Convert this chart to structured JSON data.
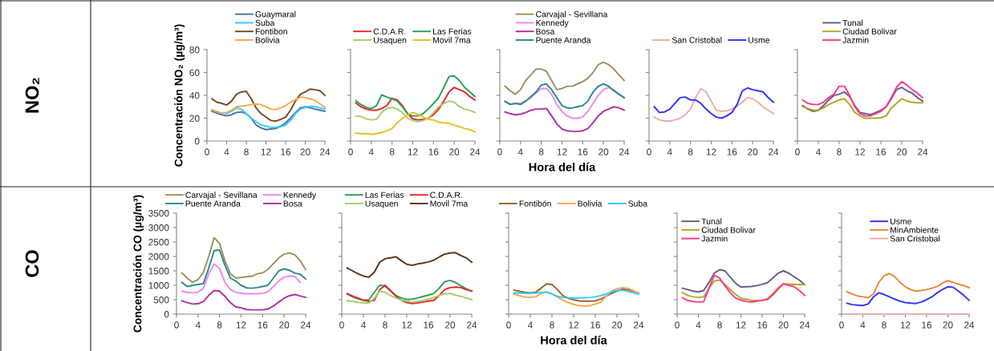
{
  "chart_data": [
    {
      "type": "line",
      "x": [
        1,
        2,
        3,
        4,
        5,
        6,
        7,
        8,
        9,
        10,
        11,
        12,
        13,
        14,
        15,
        16,
        17,
        18,
        19,
        20,
        21,
        22,
        23,
        24
      ],
      "ylabel": "Concentración NO₂ (µg/m³)",
      "annotations": [
        "NO₂"
      ],
      "xlim": [
        0,
        24
      ],
      "xticks": [
        0,
        4,
        8,
        12,
        16,
        20,
        24
      ],
      "ylim": [
        0,
        80
      ],
      "yticks": [
        0,
        20,
        40,
        60,
        80
      ],
      "legend": "top",
      "series": [
        {
          "name": "Guaymaral",
          "color": "#4f6fa8",
          "values": [
            26,
            24.5,
            23,
            22,
            23,
            25,
            25.5,
            24,
            20,
            14,
            11.5,
            10,
            10.5,
            11,
            13,
            16,
            20,
            25,
            29,
            30,
            29,
            28,
            27,
            26
          ]
        },
        {
          "name": "Suba",
          "color": "#33ccff",
          "values": [
            27,
            25.5,
            24.5,
            24,
            26,
            29,
            28,
            24,
            20,
            17,
            14,
            13,
            12,
            12,
            12.5,
            14,
            18,
            24,
            28,
            29.5,
            30.5,
            30,
            29,
            28
          ]
        },
        {
          "name": "Fontibon",
          "color": "#7a4a1e",
          "values": [
            37,
            34,
            33,
            31.5,
            35,
            41,
            43,
            43.5,
            37,
            29,
            24,
            21,
            18,
            17.5,
            19,
            21,
            27,
            35,
            41,
            43,
            45.5,
            45,
            44,
            40
          ]
        },
        {
          "name": "Bolivia",
          "color": "#ffa54f",
          "values": [
            27.5,
            26,
            24.5,
            25,
            27,
            30,
            30.5,
            31,
            32,
            32.5,
            32,
            30,
            28,
            27.5,
            29,
            31,
            34,
            36,
            38.5,
            38,
            37,
            35.5,
            32.5,
            29.5
          ]
        }
      ]
    },
    {
      "type": "line",
      "x": [
        1,
        2,
        3,
        4,
        5,
        6,
        7,
        8,
        9,
        10,
        11,
        12,
        13,
        14,
        15,
        16,
        17,
        18,
        19,
        20,
        21,
        22,
        23,
        24
      ],
      "xlim": [
        0,
        24
      ],
      "xticks": [
        0,
        4,
        8,
        12,
        16,
        20,
        24
      ],
      "ylim": [
        0,
        80
      ],
      "yticks": [
        0,
        20,
        40,
        60,
        80
      ],
      "tick_labels": "x",
      "legend": "top",
      "series": [
        {
          "name": "C.D.A.R.",
          "color": "#e8262a",
          "values": [
            33.5,
            30,
            28,
            27,
            27,
            28.5,
            31,
            37.5,
            36,
            31,
            24,
            19.5,
            18.5,
            19,
            20,
            23,
            28,
            35,
            43,
            47,
            45,
            43,
            39,
            36
          ]
        },
        {
          "name": "Las Ferias",
          "color": "#2e9e5a",
          "values": [
            35.5,
            32,
            29.5,
            28.5,
            31,
            40.5,
            38.5,
            37,
            35,
            30,
            24,
            22,
            22,
            24,
            28,
            33,
            38,
            47,
            56.5,
            57,
            53,
            47,
            43,
            39
          ]
        },
        {
          "name": "Usaquen",
          "color": "#a6cf6b",
          "values": [
            22,
            21.5,
            19.5,
            18.5,
            19,
            25,
            28.5,
            29.5,
            28,
            25,
            20,
            18,
            17,
            18,
            20,
            25,
            30,
            33,
            35,
            34,
            30,
            28,
            27,
            25
          ]
        },
        {
          "name": "Movil 7ma",
          "color": "#e6c020",
          "values": [
            7,
            6.5,
            6.5,
            6,
            6.5,
            7.5,
            9,
            11,
            16,
            20,
            23,
            25,
            23.5,
            21,
            19,
            18.5,
            16.5,
            16,
            15.5,
            14,
            12.5,
            11,
            10,
            8
          ]
        }
      ]
    },
    {
      "type": "line",
      "x": [
        1,
        2,
        3,
        4,
        5,
        6,
        7,
        8,
        9,
        10,
        11,
        12,
        13,
        14,
        15,
        16,
        17,
        18,
        19,
        20,
        21,
        22,
        23,
        24
      ],
      "xlabel": "Hora del día",
      "xlim": [
        0,
        24
      ],
      "xticks": [
        0,
        4,
        8,
        12,
        16,
        20,
        24
      ],
      "ylim": [
        0,
        80
      ],
      "yticks": [
        0,
        20,
        40,
        60,
        80
      ],
      "tick_labels": "x",
      "legend": "top",
      "series": [
        {
          "name": "Carvajal - Sevillana",
          "color": "#9e9060",
          "values": [
            48,
            44,
            41,
            45,
            53,
            58,
            63,
            63,
            61,
            53,
            45,
            46,
            48,
            48,
            50,
            52,
            55,
            60,
            67,
            69,
            67,
            63,
            58,
            53
          ]
        },
        {
          "name": "Kennedy",
          "color": "#ee88ee",
          "values": [
            35,
            32.5,
            33,
            33,
            35,
            38,
            42,
            46,
            46,
            41,
            32,
            26,
            22,
            20,
            20,
            21,
            26,
            33,
            40,
            45,
            47,
            45,
            41,
            38
          ]
        },
        {
          "name": "Bosa",
          "color": "#b030a0",
          "values": [
            25.5,
            24,
            23,
            23.5,
            25,
            27,
            28,
            28,
            28.5,
            22,
            15,
            10.5,
            9,
            8.5,
            8.5,
            9,
            11,
            16,
            22,
            26,
            28,
            30,
            29,
            27
          ]
        },
        {
          "name": "Puente Aranda",
          "color": "#2e8b8b",
          "values": [
            34.5,
            32,
            33,
            32,
            35,
            39,
            43,
            49,
            50,
            45,
            38,
            31,
            29,
            29,
            30,
            31,
            35,
            43,
            48,
            50,
            48,
            44,
            41,
            38
          ]
        }
      ]
    },
    {
      "type": "line",
      "x": [
        1,
        2,
        3,
        4,
        5,
        6,
        7,
        8,
        9,
        10,
        11,
        12,
        13,
        14,
        15,
        16,
        17,
        18,
        19,
        20,
        21,
        22,
        23,
        24
      ],
      "xlim": [
        0,
        24
      ],
      "xticks": [
        0,
        4,
        8,
        12,
        16,
        20,
        24
      ],
      "ylim": [
        0,
        80
      ],
      "yticks": [
        0,
        20,
        40,
        60,
        80
      ],
      "tick_labels": "x",
      "legend": "top",
      "series": [
        {
          "name": "San Cristobal",
          "color": "#e8b0a8",
          "values": [
            21,
            18.5,
            17.5,
            17.5,
            18.5,
            20,
            23,
            28,
            38,
            46,
            43,
            35,
            27,
            26,
            26.5,
            28,
            30.5,
            34,
            38,
            37,
            34,
            30,
            27,
            24
          ]
        },
        {
          "name": "Usme",
          "color": "#3333ff",
          "values": [
            30,
            25,
            25.5,
            28,
            33,
            38,
            38.5,
            36,
            36,
            33,
            28,
            24,
            21,
            20,
            22,
            25,
            32,
            44,
            46.5,
            45,
            44,
            43,
            38,
            34
          ]
        }
      ]
    },
    {
      "type": "line",
      "x": [
        1,
        2,
        3,
        4,
        5,
        6,
        7,
        8,
        9,
        10,
        11,
        12,
        13,
        14,
        15,
        16,
        17,
        18,
        19,
        20,
        21,
        22,
        23,
        24
      ],
      "xlim": [
        0,
        24
      ],
      "xticks": [
        0,
        4,
        8,
        12,
        16,
        20,
        24
      ],
      "ylim": [
        0,
        80
      ],
      "yticks": [
        0,
        20,
        40,
        60,
        80
      ],
      "tick_labels": "x",
      "legend": "top",
      "series": [
        {
          "name": "Tunal",
          "color": "#6a5a8a",
          "values": [
            31,
            28,
            26,
            27,
            31,
            36,
            40,
            41,
            43,
            39,
            31,
            25,
            24,
            23,
            25,
            27,
            30,
            37,
            45,
            47,
            44,
            42,
            38,
            35
          ]
        },
        {
          "name": "Ciudad Bolivar",
          "color": "#b0a820",
          "values": [
            30,
            28.5,
            27,
            27,
            29,
            32,
            34,
            36,
            37,
            32,
            25,
            22,
            20,
            20,
            20,
            20.5,
            22,
            29,
            33,
            37,
            35,
            34,
            33.5,
            33.5
          ]
        },
        {
          "name": "Jazmin",
          "color": "#ff3a8c",
          "values": [
            36,
            33,
            32,
            32,
            34,
            38,
            41,
            48,
            48,
            40,
            30,
            24,
            22,
            22,
            24,
            26,
            30,
            38,
            47,
            52,
            49,
            45,
            42,
            38
          ]
        }
      ]
    },
    {
      "type": "line",
      "x": [
        1,
        2,
        3,
        4,
        5,
        6,
        7,
        8,
        9,
        10,
        11,
        12,
        13,
        14,
        15,
        16,
        17,
        18,
        19,
        20,
        21,
        22,
        23,
        24
      ],
      "ylabel": "Concentración CO (µg/m³)",
      "annotations": [
        "CO"
      ],
      "xlim": [
        0,
        24
      ],
      "xticks": [
        0,
        4,
        8,
        12,
        16,
        20,
        24
      ],
      "ylim": [
        0,
        3500
      ],
      "yticks": [
        0,
        500,
        1000,
        1500,
        2000,
        2500,
        3000,
        3500
      ],
      "legend": "top",
      "series": [
        {
          "name": "Carvajal - Sevillana",
          "color": "#9e9060",
          "values": [
            1430,
            1250,
            1100,
            1200,
            1450,
            2000,
            2650,
            2450,
            1850,
            1400,
            1250,
            1270,
            1300,
            1310,
            1400,
            1430,
            1550,
            1750,
            1950,
            2080,
            2120,
            2050,
            1850,
            1550
          ]
        },
        {
          "name": "Kennedy",
          "color": "#ee88ee",
          "values": [
            800,
            750,
            740,
            760,
            900,
            1400,
            1740,
            1580,
            1100,
            850,
            760,
            720,
            710,
            710,
            710,
            720,
            780,
            950,
            1150,
            1280,
            1320,
            1310,
            1100,
            null
          ]
        },
        {
          "name": "Puente Aranda",
          "color": "#2e8b8b",
          "values": [
            1100,
            960,
            1000,
            1030,
            1060,
            1600,
            2200,
            2220,
            1700,
            1250,
            1150,
            1000,
            910,
            900,
            920,
            960,
            1000,
            1250,
            1500,
            1570,
            1520,
            1420,
            1380,
            1220
          ]
        },
        {
          "name": "Bosa",
          "color": "#b030a0",
          "values": [
            460,
            400,
            350,
            360,
            440,
            650,
            820,
            800,
            620,
            400,
            250,
            220,
            160,
            150,
            150,
            150,
            180,
            280,
            420,
            550,
            640,
            680,
            630,
            580
          ]
        }
      ]
    },
    {
      "type": "line",
      "x": [
        1,
        2,
        3,
        4,
        5,
        6,
        7,
        8,
        9,
        10,
        11,
        12,
        13,
        14,
        15,
        16,
        17,
        18,
        19,
        20,
        21,
        22,
        23,
        24
      ],
      "xlim": [
        0,
        24
      ],
      "xticks": [
        0,
        4,
        8,
        12,
        16,
        20,
        24
      ],
      "ylim": [
        0,
        3500
      ],
      "yticks": [
        0,
        500,
        1000,
        1500,
        2000,
        2500,
        3000,
        3500
      ],
      "tick_labels": "x",
      "legend": "top",
      "series": [
        {
          "name": "Las Ferias",
          "color": "#2e9e5a",
          "values": [
            700,
            600,
            530,
            480,
            500,
            750,
            1000,
            980,
            800,
            650,
            560,
            510,
            520,
            560,
            610,
            660,
            720,
            900,
            1120,
            1170,
            1100,
            980,
            880,
            800
          ]
        },
        {
          "name": "C.D.A.R.",
          "color": "#e8262a",
          "values": [
            710,
            630,
            560,
            480,
            440,
            480,
            850,
            1000,
            820,
            620,
            480,
            400,
            370,
            390,
            420,
            450,
            480,
            650,
            850,
            920,
            940,
            920,
            850,
            800
          ]
        },
        {
          "name": "Usaquen",
          "color": "#a6cf6b",
          "values": [
            470,
            440,
            410,
            390,
            380,
            550,
            800,
            760,
            640,
            560,
            490,
            450,
            420,
            440,
            470,
            520,
            570,
            650,
            700,
            720,
            660,
            620,
            560,
            500
          ]
        },
        {
          "name": "Movil 7ma",
          "color": "#5e3418",
          "values": [
            1600,
            1500,
            1400,
            1320,
            1280,
            1450,
            1800,
            1920,
            1950,
            1990,
            1850,
            1730,
            1690,
            1740,
            1770,
            1810,
            1870,
            1980,
            2080,
            2120,
            2130,
            2030,
            1950,
            1800
          ]
        }
      ]
    },
    {
      "type": "line",
      "x": [
        1,
        2,
        3,
        4,
        5,
        6,
        7,
        8,
        9,
        10,
        11,
        12,
        13,
        14,
        15,
        16,
        17,
        18,
        19,
        20,
        21,
        22,
        23,
        24
      ],
      "xlabel": "Hora del día",
      "xlim": [
        0,
        24
      ],
      "xticks": [
        0,
        4,
        8,
        12,
        16,
        20,
        24
      ],
      "ylim": [
        0,
        3500
      ],
      "yticks": [
        0,
        500,
        1000,
        1500,
        2000,
        2500,
        3000,
        3500
      ],
      "tick_labels": "x",
      "legend": "top",
      "series": [
        {
          "name": "Fontibón",
          "color": "#9a6230",
          "values": [
            830,
            790,
            760,
            740,
            760,
            900,
            1050,
            1030,
            850,
            640,
            550,
            500,
            460,
            450,
            450,
            460,
            520,
            620,
            720,
            800,
            860,
            850,
            800,
            720
          ]
        },
        {
          "name": "Bolivia",
          "color": "#ffa54f",
          "values": [
            700,
            640,
            590,
            580,
            600,
            720,
            770,
            700,
            590,
            490,
            400,
            340,
            300,
            280,
            300,
            350,
            410,
            620,
            790,
            880,
            920,
            900,
            820,
            720
          ]
        },
        {
          "name": "Suba",
          "color": "#33ccff",
          "values": [
            740,
            730,
            720,
            720,
            730,
            750,
            760,
            700,
            620,
            580,
            560,
            560,
            560,
            570,
            580,
            600,
            640,
            700,
            780,
            820,
            830,
            790,
            740,
            690
          ]
        }
      ]
    },
    {
      "type": "line",
      "x": [
        1,
        2,
        3,
        4,
        5,
        6,
        7,
        8,
        9,
        10,
        11,
        12,
        13,
        14,
        15,
        16,
        17,
        18,
        19,
        20,
        21,
        22,
        23,
        24
      ],
      "xlim": [
        0,
        24
      ],
      "xticks": [
        0,
        4,
        8,
        12,
        16,
        20,
        24
      ],
      "ylim": [
        0,
        3500
      ],
      "yticks": [
        0,
        500,
        1000,
        1500,
        2000,
        2500,
        3000,
        3500
      ],
      "tick_labels": "x",
      "legend": "top left",
      "series": [
        {
          "name": "Tunal",
          "color": "#6a5a8a",
          "values": [
            900,
            850,
            800,
            770,
            820,
            1100,
            1420,
            1540,
            1500,
            1280,
            1070,
            940,
            950,
            960,
            990,
            1030,
            1090,
            1250,
            1420,
            1500,
            1420,
            1300,
            1180,
            1020
          ]
        },
        {
          "name": "Ciudad Bolivar",
          "color": "#b0a820",
          "values": [
            750,
            650,
            600,
            580,
            600,
            900,
            1150,
            1180,
            1030,
            850,
            690,
            550,
            520,
            470,
            470,
            480,
            500,
            650,
            850,
            1050,
            1040,
            1030,
            1030,
            1030
          ]
        },
        {
          "name": "Jazmin",
          "color": "#ff3a8c",
          "values": [
            570,
            470,
            440,
            420,
            430,
            900,
            1350,
            1250,
            980,
            740,
            560,
            480,
            440,
            420,
            450,
            480,
            530,
            700,
            900,
            1050,
            1000,
            950,
            820,
            650
          ]
        }
      ]
    },
    {
      "type": "line",
      "x": [
        1,
        2,
        3,
        4,
        5,
        6,
        7,
        8,
        9,
        10,
        11,
        12,
        13,
        14,
        15,
        16,
        17,
        18,
        19,
        20,
        21,
        22,
        23,
        24
      ],
      "xlim": [
        0,
        24
      ],
      "xticks": [
        0,
        4,
        8,
        12,
        16,
        20,
        24
      ],
      "ylim": [
        0,
        3500
      ],
      "yticks": [
        0,
        500,
        1000,
        1500,
        2000,
        2500,
        3000,
        3500
      ],
      "tick_labels": "x",
      "legend": "top center",
      "series": [
        {
          "name": "Usme",
          "color": "#3333ff",
          "values": [
            380,
            330,
            310,
            300,
            350,
            600,
            740,
            680,
            600,
            520,
            450,
            400,
            380,
            370,
            420,
            500,
            600,
            740,
            860,
            950,
            930,
            800,
            650,
            480
          ]
        },
        {
          "name": "MinAmbiente",
          "color": "#e8883a",
          "values": [
            780,
            700,
            630,
            600,
            570,
            700,
            1100,
            1330,
            1410,
            1300,
            1100,
            950,
            850,
            800,
            820,
            850,
            900,
            960,
            1080,
            1160,
            1100,
            1040,
            990,
            920
          ]
        },
        {
          "name": "San Cristobal",
          "color": "#e8b0a8",
          "values": [
            0,
            0,
            0,
            0,
            0,
            0,
            0,
            0,
            0,
            0,
            0,
            0,
            0,
            0,
            0,
            0,
            0,
            0,
            0,
            0,
            0,
            0,
            0,
            0
          ]
        }
      ]
    }
  ]
}
